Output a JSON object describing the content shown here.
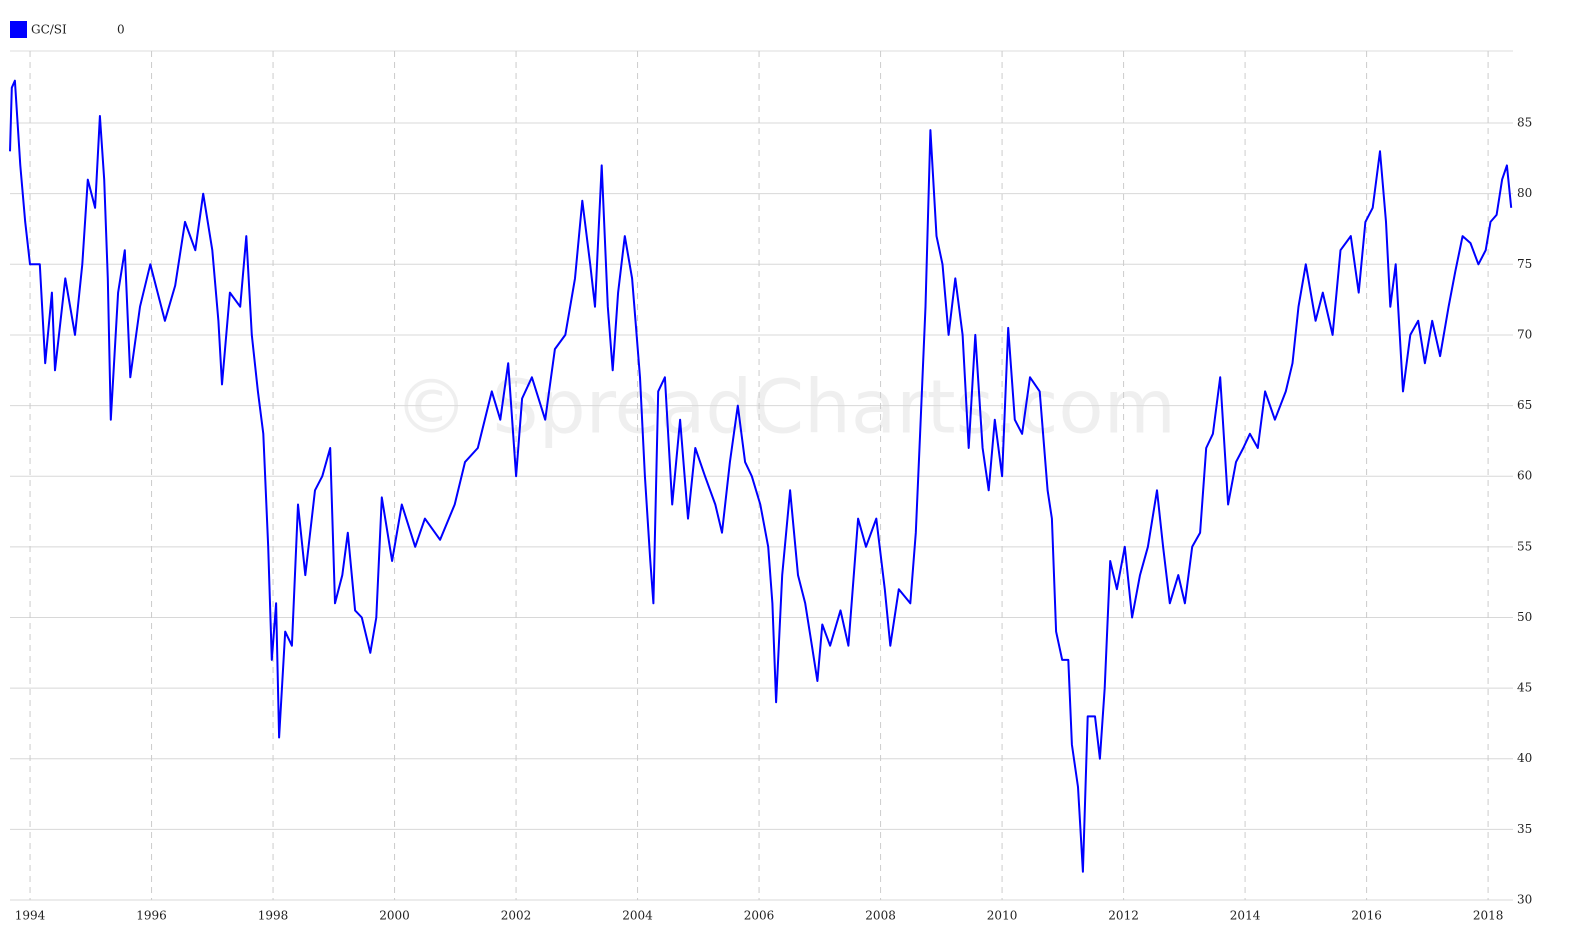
{
  "chart_data": {
    "type": "line",
    "legend_value": "0",
    "watermark": "© SpreadCharts.com",
    "series": [
      {
        "name": "GC/SI",
        "color": "#0000ff",
        "x": [
          1993.67,
          1993.7,
          1993.75,
          1993.84,
          1993.92,
          1994.0,
          1994.16,
          1994.25,
          1994.36,
          1994.41,
          1994.58,
          1994.74,
          1994.86,
          1994.95,
          1995.07,
          1995.15,
          1995.22,
          1995.28,
          1995.33,
          1995.45,
          1995.56,
          1995.65,
          1995.81,
          1995.98,
          1996.22,
          1996.39,
          1996.55,
          1996.72,
          1996.85,
          1997.0,
          1997.1,
          1997.16,
          1997.29,
          1997.46,
          1997.56,
          1997.65,
          1997.75,
          1997.84,
          1997.92,
          1997.98,
          1998.05,
          1998.1,
          1998.2,
          1998.31,
          1998.41,
          1998.53,
          1998.69,
          1998.81,
          1998.94,
          1999.02,
          1999.14,
          1999.23,
          1999.35,
          1999.46,
          1999.6,
          1999.7,
          1999.79,
          1999.96,
          2000.12,
          2000.34,
          2000.5,
          2000.75,
          2000.99,
          2001.16,
          2001.37,
          2001.6,
          2001.74,
          2001.87,
          2002.0,
          2002.1,
          2002.26,
          2002.48,
          2002.64,
          2002.81,
          2002.97,
          2003.09,
          2003.22,
          2003.3,
          2003.41,
          2003.51,
          2003.59,
          2003.68,
          2003.79,
          2003.91,
          2004.04,
          2004.12,
          2004.21,
          2004.26,
          2004.34,
          2004.45,
          2004.57,
          2004.7,
          2004.83,
          2004.95,
          2005.11,
          2005.28,
          2005.39,
          2005.52,
          2005.65,
          2005.77,
          2005.88,
          2006.02,
          2006.15,
          2006.22,
          2006.28,
          2006.38,
          2006.51,
          2006.64,
          2006.76,
          2006.87,
          2006.96,
          2007.04,
          2007.17,
          2007.34,
          2007.47,
          2007.63,
          2007.76,
          2007.93,
          2008.07,
          2008.16,
          2008.3,
          2008.49,
          2008.58,
          2008.65,
          2008.74,
          2008.82,
          2008.92,
          2009.02,
          2009.12,
          2009.23,
          2009.35,
          2009.45,
          2009.56,
          2009.68,
          2009.78,
          2009.88,
          2010.0,
          2010.1,
          2010.21,
          2010.33,
          2010.46,
          2010.62,
          2010.75,
          2010.82,
          2010.89,
          2010.99,
          2011.09,
          2011.15,
          2011.25,
          2011.33,
          2011.41,
          2011.53,
          2011.61,
          2011.69,
          2011.78,
          2011.89,
          2012.02,
          2012.14,
          2012.27,
          2012.4,
          2012.55,
          2012.65,
          2012.76,
          2012.9,
          2013.01,
          2013.13,
          2013.26,
          2013.36,
          2013.47,
          2013.59,
          2013.72,
          2013.85,
          2013.97,
          2014.08,
          2014.21,
          2014.33,
          2014.49,
          2014.67,
          2014.78,
          2014.88,
          2015.0,
          2015.16,
          2015.28,
          2015.44,
          2015.57,
          2015.74,
          2015.87,
          2015.98,
          2016.1,
          2016.22,
          2016.32,
          2016.39,
          2016.48,
          2016.6,
          2016.72,
          2016.85,
          2016.96,
          2017.08,
          2017.21,
          2017.35,
          2017.46,
          2017.58,
          2017.71,
          2017.84,
          2017.96,
          2018.04,
          2018.14,
          2018.23,
          2018.31,
          2018.38
        ],
        "values": [
          83,
          87.5,
          88,
          82,
          78,
          75,
          75,
          68,
          73,
          67.5,
          74,
          70,
          75,
          81,
          79,
          85.5,
          81,
          74,
          64,
          73,
          76,
          67,
          72,
          75,
          71,
          73.5,
          78,
          76,
          80,
          76,
          71,
          66.5,
          73,
          72,
          77,
          70,
          66,
          63,
          55,
          47,
          51,
          41.5,
          49,
          48,
          58,
          53,
          59,
          60,
          62,
          51,
          53,
          56,
          50.5,
          50,
          47.5,
          50,
          58.5,
          54,
          58,
          55,
          57,
          55.5,
          58,
          61,
          62,
          66,
          64,
          68,
          60,
          65.5,
          67,
          64,
          69,
          70,
          74,
          79.5,
          75,
          72,
          82,
          72,
          67.5,
          73,
          77,
          74,
          67,
          60,
          54,
          51,
          66,
          67,
          58,
          64,
          57,
          62,
          60,
          58,
          56,
          61,
          65,
          61,
          60,
          58,
          55,
          51,
          44,
          53,
          59,
          53,
          51,
          48,
          45.5,
          49.5,
          48,
          50.5,
          48,
          57,
          55,
          57,
          52,
          48,
          52,
          51,
          56,
          63,
          72,
          84.5,
          77,
          75,
          70,
          74,
          70,
          62,
          70,
          62,
          59,
          64,
          60,
          70.5,
          64,
          63,
          67,
          66,
          59,
          57,
          49,
          47,
          47,
          41,
          38,
          32,
          43,
          43,
          40,
          45,
          54,
          52,
          55,
          50,
          53,
          55,
          59,
          55,
          51,
          53,
          51,
          55,
          56,
          62,
          63,
          67,
          58,
          61,
          62,
          63,
          62,
          66,
          64,
          66,
          68,
          72,
          75,
          71,
          73,
          70,
          76,
          77,
          73,
          78,
          79,
          83,
          78,
          72,
          75,
          66,
          70,
          71,
          68,
          71,
          68.5,
          72,
          74.5,
          77,
          76.5,
          75,
          76,
          78,
          78.5,
          81,
          82,
          79
        ]
      }
    ],
    "xlim": [
      1993.67,
      2018.41
    ],
    "xticks": [
      1994,
      1996,
      1998,
      2000,
      2002,
      2004,
      2006,
      2008,
      2010,
      2012,
      2014,
      2016,
      2018
    ],
    "ylim": [
      30,
      90.1
    ],
    "yticks": [
      30,
      35,
      40,
      45,
      50,
      55,
      60,
      65,
      70,
      75,
      80,
      85
    ],
    "grid": true
  }
}
